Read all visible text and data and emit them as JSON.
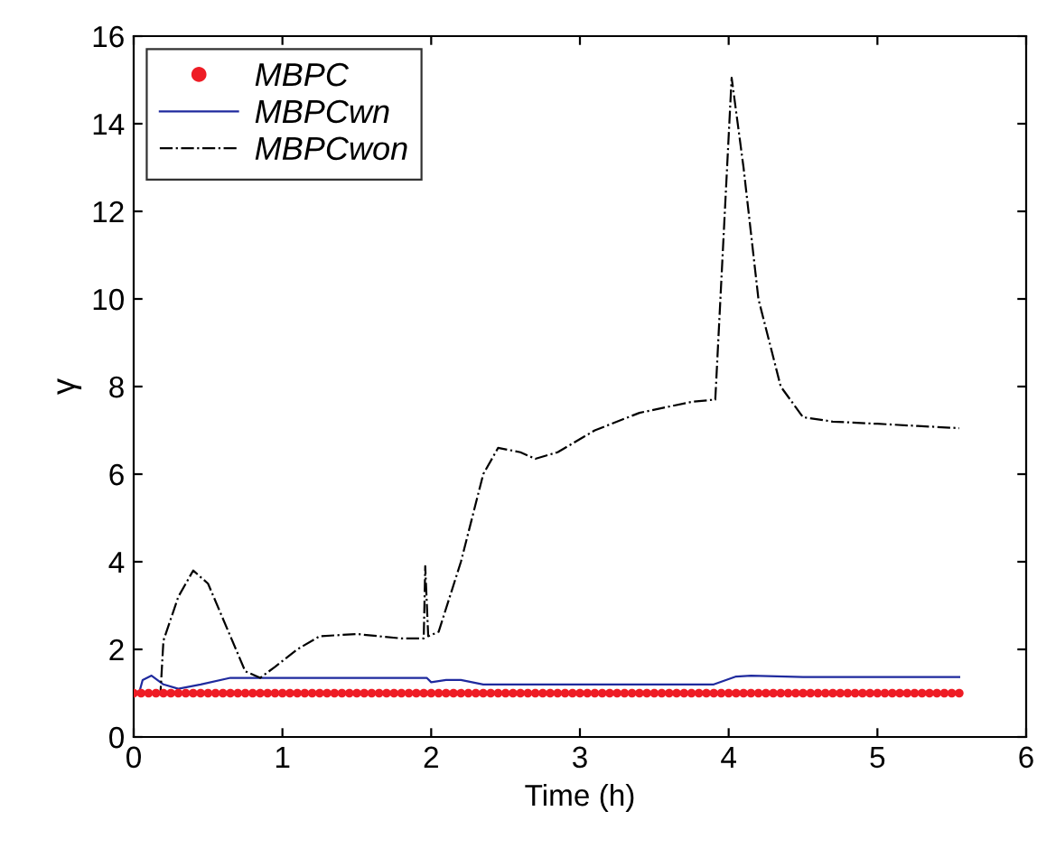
{
  "chart_data": {
    "type": "line",
    "xlabel": "Time (h)",
    "ylabel": "γ",
    "xlim": [
      0,
      6
    ],
    "ylim": [
      0,
      16
    ],
    "xticks": [
      0,
      1,
      2,
      3,
      4,
      5,
      6
    ],
    "yticks": [
      0,
      2,
      4,
      6,
      8,
      10,
      12,
      14,
      16
    ],
    "grid": false,
    "legend": "top left",
    "series": [
      {
        "name": "MBPC",
        "type": "scatter",
        "marker": "circle",
        "color": "#ee1c25",
        "x": [
          0,
          0.05,
          0.1,
          0.15,
          0.2,
          0.25,
          0.3,
          0.35,
          0.4,
          0.45,
          0.5,
          0.55,
          0.6,
          0.65,
          0.7,
          0.75,
          0.8,
          0.85,
          0.9,
          0.95,
          1.0,
          1.05,
          1.1,
          1.15,
          1.2,
          1.25,
          1.3,
          1.35,
          1.4,
          1.45,
          1.5,
          1.55,
          1.6,
          1.65,
          1.7,
          1.75,
          1.8,
          1.85,
          1.9,
          1.95,
          2.0,
          2.05,
          2.1,
          2.15,
          2.2,
          2.25,
          2.3,
          2.35,
          2.4,
          2.45,
          2.5,
          2.55,
          2.6,
          2.65,
          2.7,
          2.75,
          2.8,
          2.85,
          2.9,
          2.95,
          3.0,
          3.05,
          3.1,
          3.15,
          3.2,
          3.25,
          3.3,
          3.35,
          3.4,
          3.45,
          3.5,
          3.55,
          3.6,
          3.65,
          3.7,
          3.75,
          3.8,
          3.85,
          3.9,
          3.95,
          4.0,
          4.05,
          4.1,
          4.15,
          4.2,
          4.25,
          4.3,
          4.35,
          4.4,
          4.45,
          4.5,
          4.55,
          4.6,
          4.65,
          4.7,
          4.75,
          4.8,
          4.85,
          4.9,
          4.95,
          5.0,
          5.05,
          5.1,
          5.15,
          5.2,
          5.25,
          5.3,
          5.35,
          5.4,
          5.45,
          5.5,
          5.55
        ],
        "values": [
          1,
          1,
          1,
          1,
          1,
          1,
          1,
          1,
          1,
          1,
          1,
          1,
          1,
          1,
          1,
          1,
          1,
          1,
          1,
          1,
          1,
          1,
          1,
          1,
          1,
          1,
          1,
          1,
          1,
          1,
          1,
          1,
          1,
          1,
          1,
          1,
          1,
          1,
          1,
          1,
          1,
          1,
          1,
          1,
          1,
          1,
          1,
          1,
          1,
          1,
          1,
          1,
          1,
          1,
          1,
          1,
          1,
          1,
          1,
          1,
          1,
          1,
          1,
          1,
          1,
          1,
          1,
          1,
          1,
          1,
          1,
          1,
          1,
          1,
          1,
          1,
          1,
          1,
          1,
          1,
          1,
          1,
          1,
          1,
          1,
          1,
          1,
          1,
          1,
          1,
          1,
          1,
          1,
          1,
          1,
          1,
          1,
          1,
          1,
          1,
          1,
          1,
          1,
          1,
          1,
          1,
          1,
          1,
          1,
          1,
          1,
          1
        ]
      },
      {
        "name": "MBPCwn",
        "line_style": "solid",
        "color": "#1f2a9e",
        "x": [
          0,
          0.04,
          0.06,
          0.12,
          0.2,
          0.3,
          0.45,
          0.65,
          1.0,
          1.5,
          1.97,
          2.0,
          2.1,
          2.2,
          2.35,
          3.0,
          3.9,
          4.05,
          4.15,
          4.5,
          5.0,
          5.55
        ],
        "values": [
          1.0,
          1.05,
          1.3,
          1.4,
          1.2,
          1.1,
          1.2,
          1.35,
          1.35,
          1.35,
          1.35,
          1.25,
          1.3,
          1.3,
          1.2,
          1.2,
          1.2,
          1.38,
          1.4,
          1.37,
          1.37,
          1.37
        ]
      },
      {
        "name": "MBPCwon",
        "line_style": "dashdot",
        "color": "#000000",
        "x": [
          0,
          0.18,
          0.2,
          0.3,
          0.4,
          0.5,
          0.65,
          0.75,
          0.85,
          0.95,
          1.1,
          1.25,
          1.5,
          1.8,
          1.95,
          1.96,
          1.98,
          2.05,
          2.2,
          2.35,
          2.45,
          2.6,
          2.7,
          2.85,
          3.1,
          3.4,
          3.75,
          3.9,
          3.91,
          4.02,
          4.1,
          4.2,
          4.35,
          4.5,
          4.7,
          5.0,
          5.55
        ],
        "values": [
          1.0,
          1.0,
          2.2,
          3.2,
          3.8,
          3.5,
          2.3,
          1.5,
          1.35,
          1.6,
          2.0,
          2.3,
          2.35,
          2.25,
          2.25,
          3.9,
          2.3,
          2.4,
          4.0,
          6.0,
          6.6,
          6.5,
          6.35,
          6.5,
          7.0,
          7.4,
          7.65,
          7.7,
          7.7,
          15.05,
          13.0,
          10.0,
          8.0,
          7.3,
          7.2,
          7.15,
          7.05
        ]
      }
    ]
  }
}
